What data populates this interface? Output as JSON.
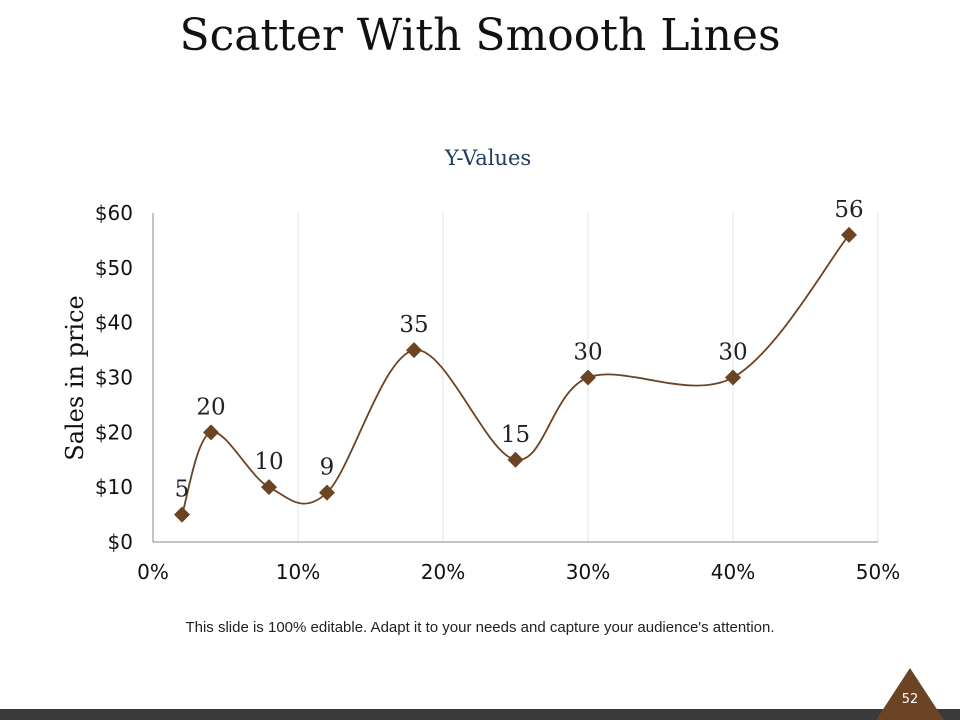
{
  "slide": {
    "title": "Scatter With Smooth Lines",
    "footnote": "This slide is 100% editable. Adapt it to your needs and capture your audience's attention.",
    "page_number": "52"
  },
  "colors": {
    "series": "#6b4423",
    "chart_title": "#1f3a5f",
    "badge": "#6b4423",
    "footer_bar": "#3a3a3a"
  },
  "chart_data": {
    "type": "scatter",
    "line_style": "smooth",
    "marker": "diamond",
    "title": "Y-Values",
    "xlabel": "",
    "ylabel": "Sales in price",
    "xlim": [
      0,
      50
    ],
    "ylim": [
      0,
      60
    ],
    "x_ticks": [
      0,
      10,
      20,
      30,
      40,
      50
    ],
    "x_tick_labels": [
      "0%",
      "10%",
      "20%",
      "30%",
      "40%",
      "50%"
    ],
    "y_ticks": [
      0,
      10,
      20,
      30,
      40,
      50,
      60
    ],
    "y_tick_labels": [
      "$0",
      "$10",
      "$20",
      "$30",
      "$40",
      "$50",
      "$60"
    ],
    "vertical_gridlines": true,
    "series": [
      {
        "name": "Y-Values",
        "x": [
          2,
          4,
          8,
          12,
          18,
          25,
          30,
          40,
          48
        ],
        "y": [
          5,
          20,
          10,
          9,
          35,
          15,
          30,
          30,
          56
        ],
        "labels": [
          "5",
          "20",
          "10",
          "9",
          "35",
          "15",
          "30",
          "30",
          "56"
        ]
      }
    ]
  }
}
